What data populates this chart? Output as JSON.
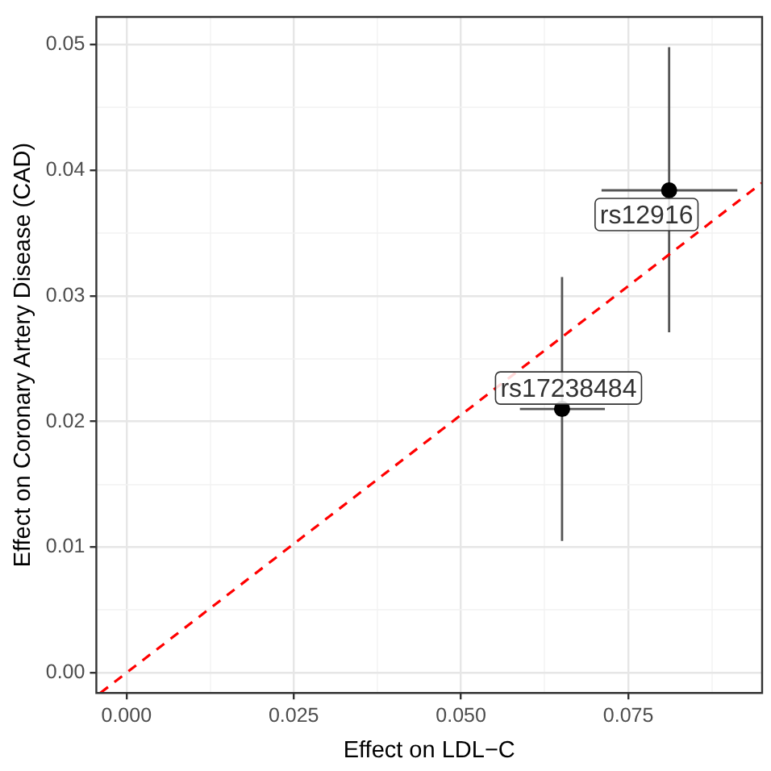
{
  "chart_data": {
    "type": "scatter",
    "xlabel": "Effect on LDL−C",
    "ylabel": "Effect on Coronary Artery Disease (CAD)",
    "xlim": [
      -0.0045,
      0.095
    ],
    "ylim": [
      -0.0016,
      0.0522
    ],
    "xticks": [
      {
        "value": 0,
        "label": "0.000"
      },
      {
        "value": 0.0125,
        "label": null
      },
      {
        "value": 0.025,
        "label": "0.025"
      },
      {
        "value": 0.0375,
        "label": null
      },
      {
        "value": 0.05,
        "label": "0.050"
      },
      {
        "value": 0.0625,
        "label": null
      },
      {
        "value": 0.075,
        "label": "0.075"
      },
      {
        "value": 0.0875,
        "label": null
      }
    ],
    "yticks": [
      {
        "value": 0,
        "label": "0.00"
      },
      {
        "value": 0.005,
        "label": null
      },
      {
        "value": 0.01,
        "label": "0.01"
      },
      {
        "value": 0.015,
        "label": null
      },
      {
        "value": 0.02,
        "label": "0.02"
      },
      {
        "value": 0.025,
        "label": null
      },
      {
        "value": 0.03,
        "label": "0.03"
      },
      {
        "value": 0.035,
        "label": null
      },
      {
        "value": 0.04,
        "label": "0.04"
      },
      {
        "value": 0.045,
        "label": null
      },
      {
        "value": 0.05,
        "label": "0.05"
      }
    ],
    "grid": true,
    "series": [
      {
        "color": "#000000",
        "marker": "circle",
        "x": [
          0.0651,
          0.0811
        ],
        "values": [
          0.021,
          0.0384
        ],
        "errors": [
          [
            0.0105,
            0.0315
          ],
          [
            0.0271,
            0.0498
          ]
        ],
        "xerrors": [
          [
            0.0588,
            0.0715
          ],
          [
            0.071,
            0.0913
          ]
        ]
      },
      {
        "type": "line",
        "color": "#ff0000",
        "line_style": "dashed",
        "x": [
          -0.0039,
          0.095
        ],
        "values": [
          -0.0016,
          0.039
        ]
      }
    ],
    "annotations": [
      {
        "text": "rs17238484",
        "x": 0.0651,
        "y": 0.021
      },
      {
        "text": "rs12916",
        "x": 0.0811,
        "y": 0.0384
      }
    ]
  }
}
